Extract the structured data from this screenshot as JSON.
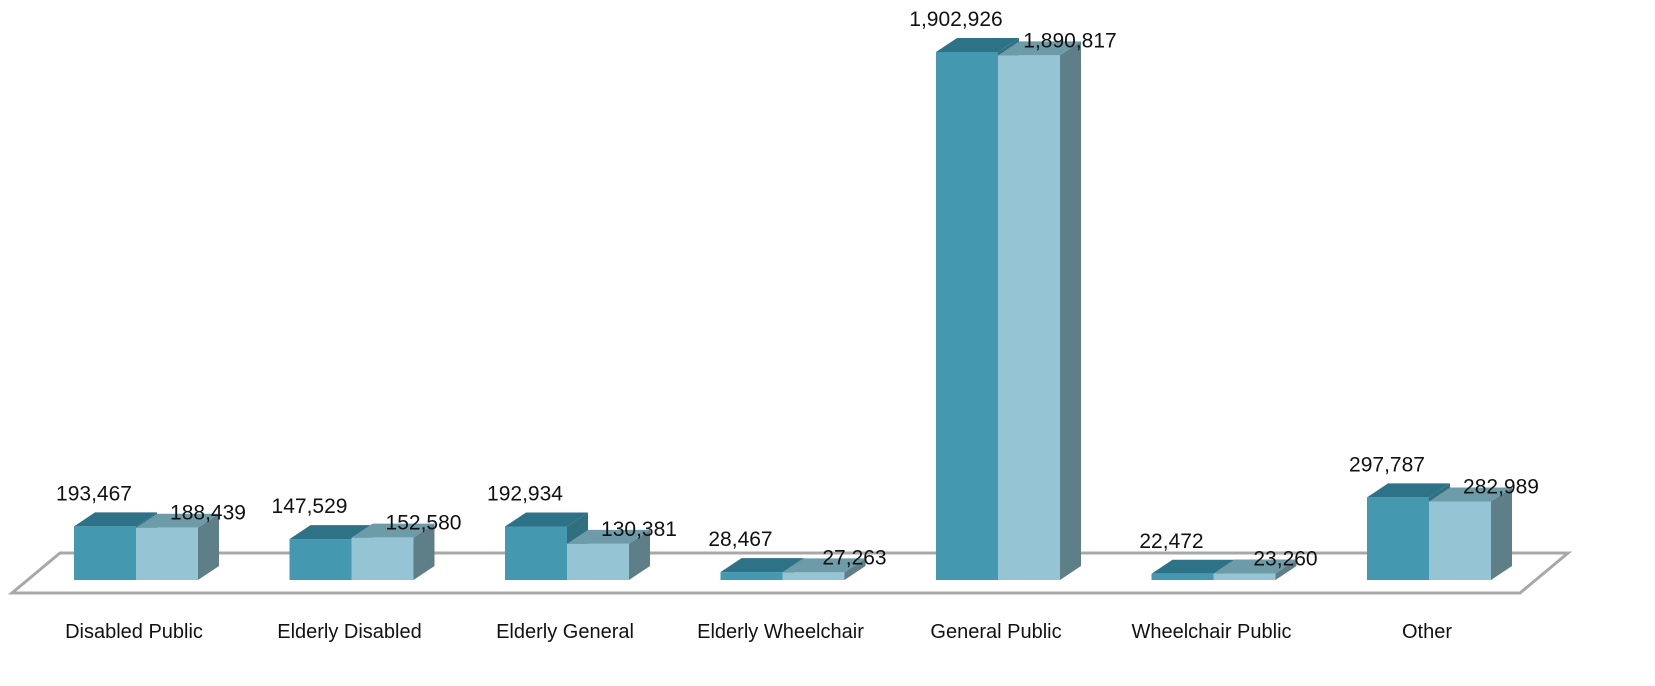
{
  "chart_data": {
    "type": "bar",
    "title": "",
    "xlabel": "",
    "ylabel": "",
    "categories": [
      "Disabled Public",
      "Elderly Disabled",
      "Elderly General",
      "Elderly Wheelchair",
      "General Public",
      "Wheelchair Public",
      "Other"
    ],
    "series": [
      {
        "values": [
          193467,
          147529,
          192934,
          28467,
          1902926,
          22472,
          297787
        ],
        "labels": [
          "193,467",
          "147,529",
          "192,934",
          "28,467",
          "1,902,926",
          "22,472",
          "297,787"
        ],
        "color": "#4499B1",
        "top_color": "#2E7288",
        "side_color": "#2F6F80"
      },
      {
        "values": [
          188439,
          152580,
          130381,
          27263,
          1890817,
          23260,
          282989
        ],
        "labels": [
          "188,439",
          "152,580",
          "130,381",
          "27,263",
          "1,890,817",
          "23,260",
          "282,989"
        ],
        "color": "#95C5D4",
        "top_color": "#6E9BA8",
        "side_color": "#5E7E88"
      }
    ],
    "ylim": [
      0,
      1902926
    ],
    "grid": false,
    "legend": "none",
    "style": "3d-bar-on-floor"
  }
}
